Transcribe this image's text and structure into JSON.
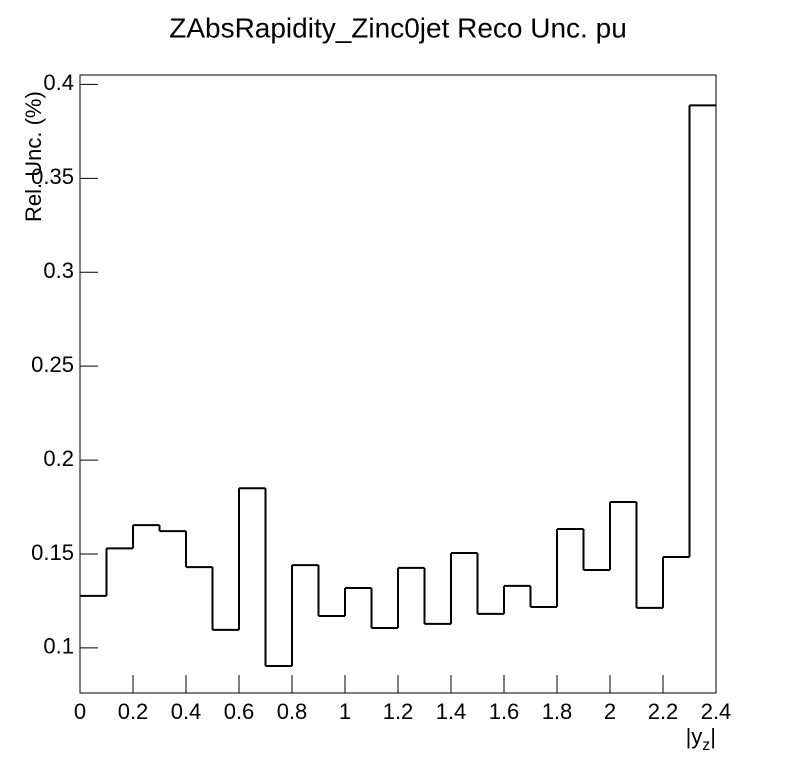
{
  "chart_data": {
    "type": "histogram",
    "title": "ZAbsRapidity_Zinc0jet Reco Unc. pu",
    "y_label": "Rel. Unc. (%)",
    "x_label": {
      "main": "|y",
      "sub": "z",
      "end": "|"
    },
    "bins": [
      0,
      0.1,
      0.2,
      0.3,
      0.4,
      0.5,
      0.6,
      0.7,
      0.8,
      0.9,
      1,
      1.1,
      1.2,
      1.3,
      1.4,
      1.5,
      1.6,
      1.7,
      1.8,
      1.9,
      2,
      2.1,
      2.2,
      2.3,
      2.4
    ],
    "values": [
      0.1277,
      0.153,
      0.1654,
      0.1622,
      0.143,
      0.1096,
      0.185,
      0.0904,
      0.1441,
      0.117,
      0.1319,
      0.1106,
      0.1426,
      0.1128,
      0.1505,
      0.1181,
      0.133,
      0.1218,
      0.1633,
      0.1415,
      0.1777,
      0.1213,
      0.1484,
      0.3888
    ],
    "color": "#000000",
    "xlim": [
      0,
      2.4
    ],
    "xticks": [
      0,
      0.2,
      0.4,
      0.6,
      0.8,
      1,
      1.2,
      1.4,
      1.6,
      1.8,
      2,
      2.2,
      2.4
    ],
    "ylim": [
      0.076,
      0.405
    ],
    "yticks": [
      0.1,
      0.15,
      0.2,
      0.25,
      0.3,
      0.35,
      0.4
    ]
  }
}
